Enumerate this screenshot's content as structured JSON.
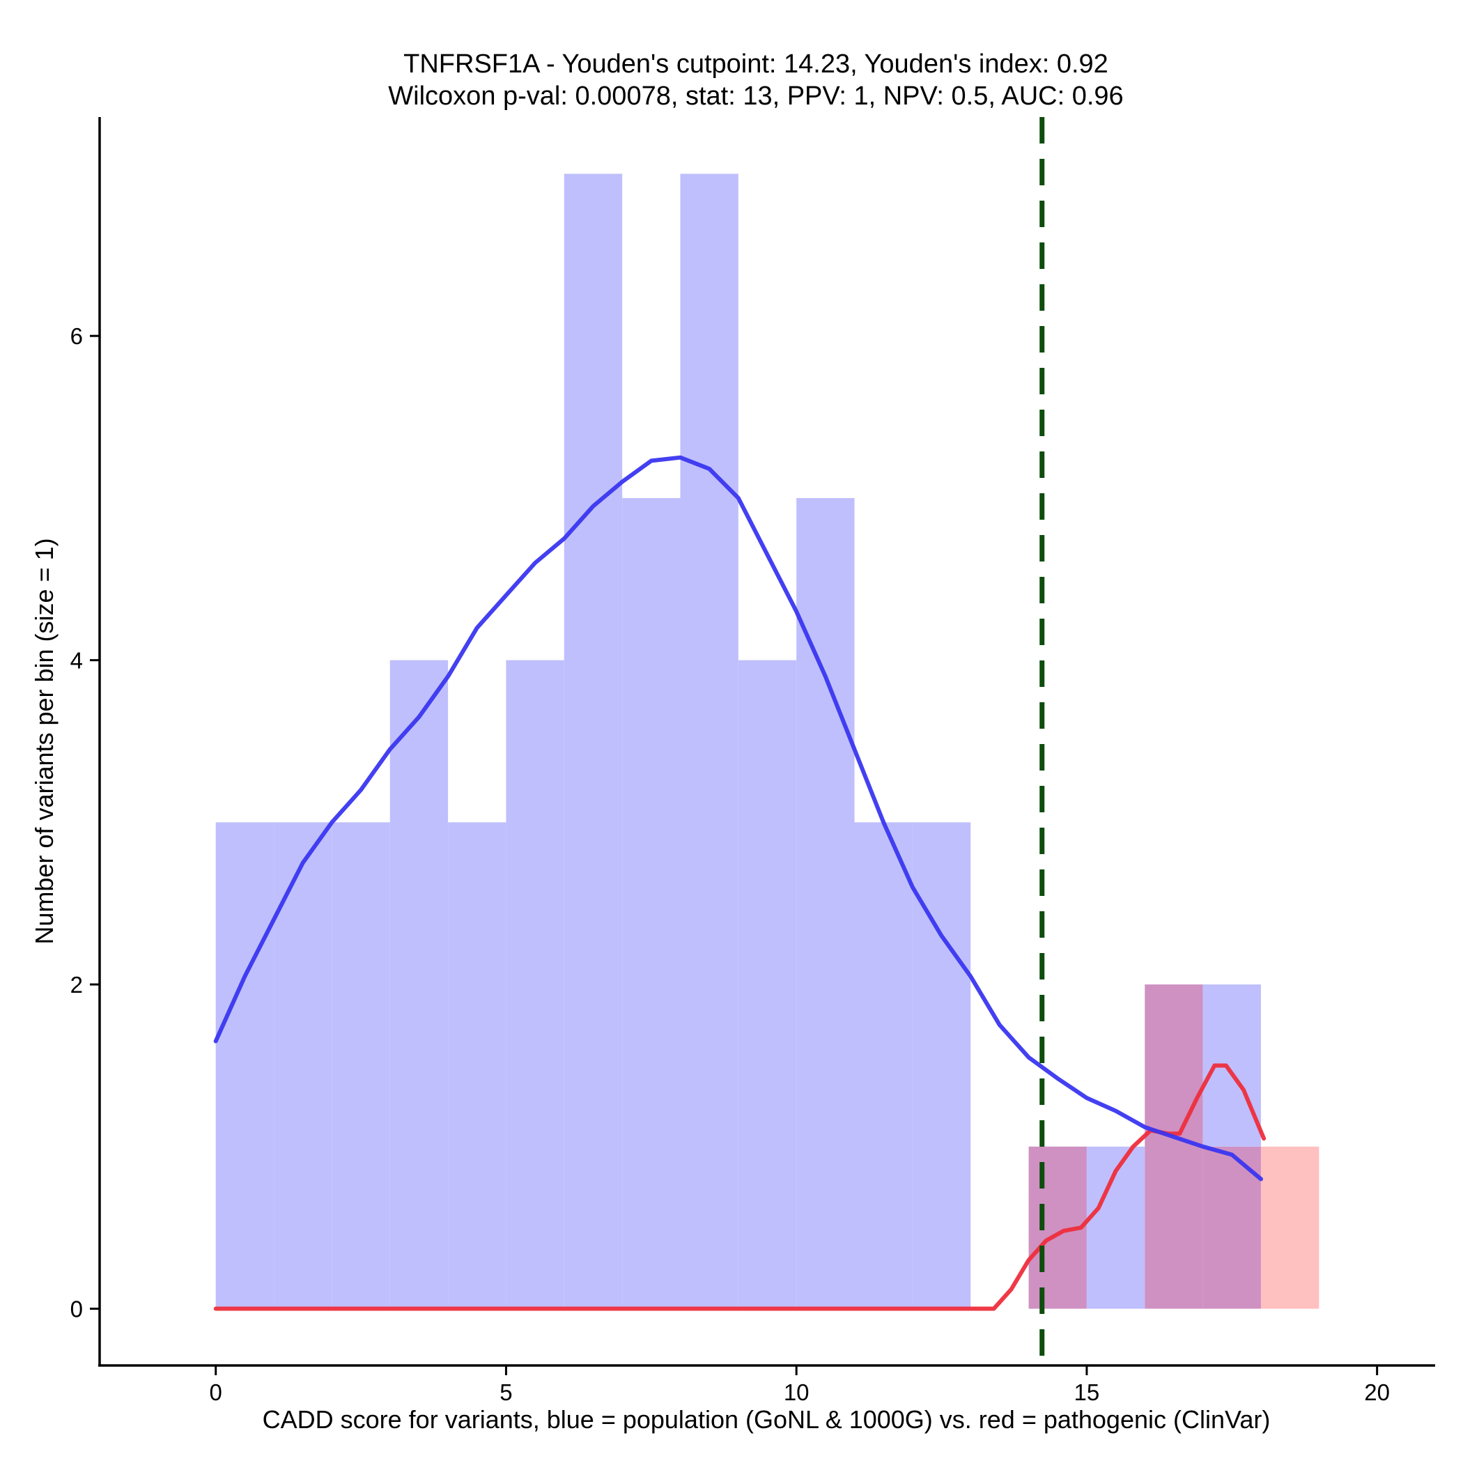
{
  "chart_data": {
    "type": "bar",
    "title": "TNFRSF1A - Youden's cutpoint: 14.23, Youden's index: 0.92",
    "subtitle": "Wilcoxon p-val: 0.00078, stat: 13, PPV: 1, NPV: 0.5, AUC: 0.96",
    "xlabel": "CADD score for variants, blue = population (GoNL & 1000G) vs. red = pathogenic (ClinVar)",
    "ylabel": "Number of variants per bin (size = 1)",
    "xlim": [
      -2,
      21
    ],
    "ylim": [
      -0.35,
      7.35
    ],
    "x_ticks": [
      0,
      5,
      10,
      15,
      20
    ],
    "y_ticks": [
      0,
      2,
      4,
      6
    ],
    "grid": false,
    "bin_width": 1,
    "cutpoint": 14.23,
    "colors": {
      "population_bar": "#bfbffd",
      "pathogenic_bar": "#ffc0c0",
      "overlap_bar": "#cf91c2",
      "population_curve": "#3a36f0",
      "pathogenic_curve": "#ee2e3c",
      "cutpoint_line": "#0d4d0d"
    },
    "series": [
      {
        "name": "population",
        "bins": [
          {
            "start": 0,
            "count": 3
          },
          {
            "start": 1,
            "count": 3
          },
          {
            "start": 2,
            "count": 3
          },
          {
            "start": 3,
            "count": 4
          },
          {
            "start": 4,
            "count": 3
          },
          {
            "start": 5,
            "count": 4
          },
          {
            "start": 6,
            "count": 7
          },
          {
            "start": 7,
            "count": 5
          },
          {
            "start": 8,
            "count": 7
          },
          {
            "start": 9,
            "count": 4
          },
          {
            "start": 10,
            "count": 5
          },
          {
            "start": 11,
            "count": 3
          },
          {
            "start": 12,
            "count": 3
          },
          {
            "start": 14,
            "count": 1
          },
          {
            "start": 15,
            "count": 1
          },
          {
            "start": 16,
            "count": 2
          },
          {
            "start": 17,
            "count": 2
          }
        ],
        "density_curve": [
          [
            0,
            1.65
          ],
          [
            0.5,
            2.05
          ],
          [
            1,
            2.4
          ],
          [
            1.5,
            2.75
          ],
          [
            2,
            3.0
          ],
          [
            2.5,
            3.2
          ],
          [
            3,
            3.45
          ],
          [
            3.5,
            3.65
          ],
          [
            4,
            3.9
          ],
          [
            4.5,
            4.2
          ],
          [
            5,
            4.4
          ],
          [
            5.5,
            4.6
          ],
          [
            6,
            4.75
          ],
          [
            6.5,
            4.95
          ],
          [
            7,
            5.1
          ],
          [
            7.5,
            5.23
          ],
          [
            8,
            5.25
          ],
          [
            8.5,
            5.18
          ],
          [
            9,
            5.0
          ],
          [
            9.5,
            4.65
          ],
          [
            10,
            4.3
          ],
          [
            10.5,
            3.9
          ],
          [
            11,
            3.45
          ],
          [
            11.5,
            3.0
          ],
          [
            12,
            2.6
          ],
          [
            12.5,
            2.3
          ],
          [
            13,
            2.05
          ],
          [
            13.5,
            1.75
          ],
          [
            14,
            1.55
          ],
          [
            14.5,
            1.42
          ],
          [
            15,
            1.3
          ],
          [
            15.5,
            1.22
          ],
          [
            16,
            1.12
          ],
          [
            16.5,
            1.06
          ],
          [
            17,
            1.0
          ],
          [
            17.5,
            0.95
          ],
          [
            18,
            0.8
          ]
        ]
      },
      {
        "name": "pathogenic",
        "bins": [
          {
            "start": 14,
            "count": 1
          },
          {
            "start": 16,
            "count": 2
          },
          {
            "start": 17,
            "count": 1
          },
          {
            "start": 18,
            "count": 1
          }
        ],
        "density_curve": [
          [
            0,
            0
          ],
          [
            13.4,
            0
          ],
          [
            13.7,
            0.12
          ],
          [
            14,
            0.3
          ],
          [
            14.3,
            0.42
          ],
          [
            14.6,
            0.48
          ],
          [
            14.9,
            0.5
          ],
          [
            15.2,
            0.62
          ],
          [
            15.5,
            0.85
          ],
          [
            15.8,
            1.0
          ],
          [
            16.1,
            1.1
          ],
          [
            16.4,
            1.08
          ],
          [
            16.6,
            1.08
          ],
          [
            16.9,
            1.3
          ],
          [
            17.2,
            1.5
          ],
          [
            17.4,
            1.5
          ],
          [
            17.7,
            1.35
          ],
          [
            18.05,
            1.05
          ]
        ]
      }
    ]
  }
}
